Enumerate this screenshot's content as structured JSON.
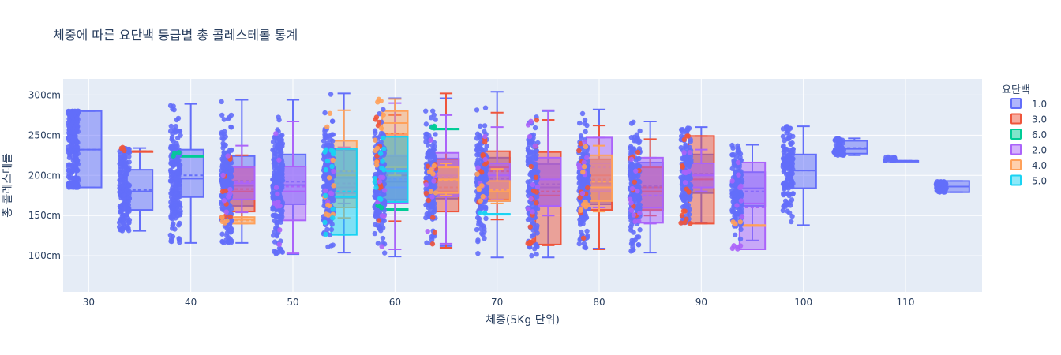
{
  "chart_data": {
    "type": "box",
    "title": "체중에 따른 요단백 등급별 총 콜레스테롤 통계",
    "xlabel": "체중(5Kg 단위)",
    "ylabel": "총 콜레스테롤",
    "xlim": [
      27.5,
      117.5
    ],
    "ylim": [
      55,
      320
    ],
    "xticks": [
      30,
      40,
      50,
      60,
      70,
      80,
      90,
      100,
      110
    ],
    "yticks": [
      100,
      150,
      200,
      250,
      300
    ],
    "ytick_suffix": "cm",
    "legend_title": "요단백",
    "legend_position": "right",
    "grid": true,
    "plot_bg": "#e5ecf6",
    "categories": [
      30,
      35,
      40,
      45,
      50,
      55,
      60,
      65,
      70,
      75,
      80,
      85,
      90,
      95,
      100,
      105,
      110,
      115
    ],
    "series": [
      {
        "name": "1.0",
        "color": "#636efa",
        "boxes": [
          {
            "x": 30,
            "min": 185,
            "q1": 185,
            "median": 232,
            "q3": 280,
            "max": 280,
            "mean": 232
          },
          {
            "x": 35,
            "min": 131,
            "q1": 157,
            "median": 180,
            "q3": 207,
            "max": 234,
            "mean": 182
          },
          {
            "x": 40,
            "min": 116,
            "q1": 173,
            "median": 196,
            "q3": 232,
            "max": 289,
            "mean": 200
          },
          {
            "x": 45,
            "min": 116,
            "q1": 162,
            "median": 187,
            "q3": 224,
            "max": 294,
            "mean": 193
          },
          {
            "x": 50,
            "min": 102,
            "q1": 164,
            "median": 188,
            "q3": 226,
            "max": 294,
            "mean": 192
          },
          {
            "x": 55,
            "min": 104,
            "q1": 172,
            "median": 197,
            "q3": 231,
            "max": 302,
            "mean": 200
          },
          {
            "x": 60,
            "min": 99,
            "q1": 170,
            "median": 192,
            "q3": 224,
            "max": 296,
            "mean": 196
          },
          {
            "x": 65,
            "min": 112,
            "q1": 171,
            "median": 197,
            "q3": 221,
            "max": 296,
            "mean": 199
          },
          {
            "x": 70,
            "min": 98,
            "q1": 168,
            "median": 193,
            "q3": 222,
            "max": 304,
            "mean": 196
          },
          {
            "x": 75,
            "min": 98,
            "q1": 162,
            "median": 185,
            "q3": 214,
            "max": 280,
            "mean": 189
          },
          {
            "x": 80,
            "min": 109,
            "q1": 164,
            "median": 190,
            "q3": 220,
            "max": 282,
            "mean": 193
          },
          {
            "x": 85,
            "min": 104,
            "q1": 156,
            "median": 185,
            "q3": 216,
            "max": 267,
            "mean": 187
          },
          {
            "x": 90,
            "min": 141,
            "q1": 178,
            "median": 200,
            "q3": 226,
            "max": 260,
            "mean": 202
          },
          {
            "x": 95,
            "min": 119,
            "q1": 162,
            "median": 184,
            "q3": 204,
            "max": 238,
            "mean": 180
          },
          {
            "x": 100,
            "min": 138,
            "q1": 184,
            "median": 206,
            "q3": 226,
            "max": 261,
            "mean": 206
          },
          {
            "x": 105,
            "min": 225,
            "q1": 227,
            "median": 233,
            "q3": 243,
            "max": 246,
            "mean": 234
          },
          {
            "x": 110,
            "min": 218,
            "q1": 218,
            "median": 218,
            "q3": 218,
            "max": 218,
            "mean": 218
          },
          {
            "x": 115,
            "min": 179,
            "q1": 179,
            "median": 186,
            "q3": 193,
            "max": 193,
            "mean": 186
          }
        ]
      },
      {
        "name": "3.0",
        "color": "#ef553b",
        "boxes": [
          {
            "x": 35,
            "min": 230,
            "q1": 230,
            "median": 230,
            "q3": 230,
            "max": 230,
            "mean": 230
          },
          {
            "x": 45,
            "min": 145,
            "q1": 155,
            "median": 180,
            "q3": 210,
            "max": 225,
            "mean": 183
          },
          {
            "x": 60,
            "min": 143,
            "q1": 165,
            "median": 200,
            "q3": 252,
            "max": 275,
            "mean": 205
          },
          {
            "x": 65,
            "min": 110,
            "q1": 155,
            "median": 180,
            "q3": 220,
            "max": 302,
            "mean": 185
          },
          {
            "x": 70,
            "min": 145,
            "q1": 170,
            "median": 210,
            "q3": 230,
            "max": 278,
            "mean": 205
          },
          {
            "x": 75,
            "min": 113,
            "q1": 114,
            "median": 175,
            "q3": 229,
            "max": 269,
            "mean": 180
          },
          {
            "x": 80,
            "min": 108,
            "q1": 157,
            "median": 200,
            "q3": 220,
            "max": 262,
            "mean": 195
          },
          {
            "x": 85,
            "min": 150,
            "q1": 157,
            "median": 180,
            "q3": 210,
            "max": 245,
            "mean": 185
          },
          {
            "x": 90,
            "min": 140,
            "q1": 140,
            "median": 195,
            "q3": 249,
            "max": 249,
            "mean": 195
          }
        ]
      },
      {
        "name": "6.0",
        "color": "#00cc96",
        "boxes": [
          {
            "x": 40,
            "min": 224,
            "q1": 224,
            "median": 224,
            "q3": 224,
            "max": 224,
            "mean": 224
          },
          {
            "x": 60,
            "min": 158,
            "q1": 158,
            "median": 158,
            "q3": 158,
            "max": 158,
            "mean": 158
          },
          {
            "x": 65,
            "min": 258,
            "q1": 258,
            "median": 258,
            "q3": 258,
            "max": 258,
            "mean": 258
          }
        ]
      },
      {
        "name": "2.0",
        "color": "#ab63fa",
        "boxes": [
          {
            "x": 45,
            "min": 154,
            "q1": 170,
            "median": 190,
            "q3": 210,
            "max": 237,
            "mean": 192
          },
          {
            "x": 50,
            "min": 103,
            "q1": 144,
            "median": 180,
            "q3": 211,
            "max": 267,
            "mean": 186
          },
          {
            "x": 55,
            "min": 165,
            "q1": 178,
            "median": 185,
            "q3": 205,
            "max": 235,
            "mean": 190
          },
          {
            "x": 60,
            "min": 108,
            "q1": 165,
            "median": 185,
            "q3": 225,
            "max": 290,
            "mean": 195
          },
          {
            "x": 65,
            "min": 115,
            "q1": 174,
            "median": 200,
            "q3": 228,
            "max": 275,
            "mean": 198
          },
          {
            "x": 70,
            "min": 170,
            "q1": 182,
            "median": 200,
            "q3": 215,
            "max": 260,
            "mean": 200
          },
          {
            "x": 75,
            "min": 150,
            "q1": 162,
            "median": 195,
            "q3": 222,
            "max": 281,
            "mean": 195
          },
          {
            "x": 80,
            "min": 160,
            "q1": 180,
            "median": 215,
            "q3": 247,
            "max": 247,
            "mean": 210
          },
          {
            "x": 85,
            "min": 140,
            "q1": 141,
            "median": 160,
            "q3": 222,
            "max": 222,
            "mean": 175
          },
          {
            "x": 90,
            "min": 180,
            "q1": 185,
            "median": 200,
            "q3": 215,
            "max": 232,
            "mean": 200
          },
          {
            "x": 95,
            "min": 108,
            "q1": 108,
            "median": 165,
            "q3": 216,
            "max": 216,
            "mean": 160
          }
        ]
      },
      {
        "name": "4.0",
        "color": "#ffa15a",
        "boxes": [
          {
            "x": 45,
            "min": 140,
            "q1": 140,
            "median": 145,
            "q3": 148,
            "max": 148,
            "mean": 144
          },
          {
            "x": 55,
            "min": 147,
            "q1": 160,
            "median": 200,
            "q3": 243,
            "max": 281,
            "mean": 205
          },
          {
            "x": 60,
            "min": 200,
            "q1": 210,
            "median": 265,
            "q3": 280,
            "max": 295,
            "mean": 252
          },
          {
            "x": 65,
            "min": 175,
            "q1": 178,
            "median": 195,
            "q3": 210,
            "max": 215,
            "mean": 194
          },
          {
            "x": 70,
            "min": 165,
            "q1": 168,
            "median": 180,
            "q3": 193,
            "max": 208,
            "mean": 182
          },
          {
            "x": 80,
            "min": 155,
            "q1": 168,
            "median": 185,
            "q3": 225,
            "max": 237,
            "mean": 192
          },
          {
            "x": 95,
            "min": 138,
            "q1": 138,
            "median": 138,
            "q3": 138,
            "max": 138,
            "mean": 138
          }
        ]
      },
      {
        "name": "5.0",
        "color": "#19d3f3",
        "boxes": [
          {
            "x": 55,
            "min": 126,
            "q1": 126,
            "median": 173,
            "q3": 233,
            "max": 233,
            "mean": 180
          },
          {
            "x": 60,
            "min": 167,
            "q1": 167,
            "median": 205,
            "q3": 248,
            "max": 248,
            "mean": 205
          },
          {
            "x": 70,
            "min": 152,
            "q1": 152,
            "median": 152,
            "q3": 152,
            "max": 152,
            "mean": 152
          }
        ]
      }
    ]
  }
}
